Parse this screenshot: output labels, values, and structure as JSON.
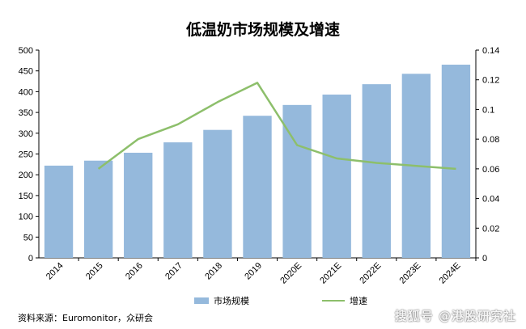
{
  "chart_data": {
    "type": "bar",
    "title": "低温奶市场规模及增速",
    "categories": [
      "2014",
      "2015",
      "2016",
      "2017",
      "2018",
      "2019",
      "2020E",
      "2021E",
      "2022E",
      "2023E",
      "2024E"
    ],
    "series": [
      {
        "name": "市场规模",
        "type": "bar",
        "axis": "left",
        "color": "#95b9dc",
        "values": [
          222,
          234,
          253,
          278,
          308,
          342,
          368,
          393,
          418,
          443,
          465
        ]
      },
      {
        "name": "增速",
        "type": "line",
        "axis": "right",
        "color": "#8dbf6b",
        "values": [
          null,
          0.06,
          0.08,
          0.09,
          0.105,
          0.118,
          0.076,
          0.067,
          0.064,
          0.062,
          0.06
        ]
      }
    ],
    "ylim_left": [
      0,
      500
    ],
    "yticks_left": [
      "0",
      "50",
      "100",
      "150",
      "200",
      "250",
      "300",
      "350",
      "400",
      "450",
      "500"
    ],
    "ylim_right": [
      0,
      0.14
    ],
    "yticks_right": [
      "0",
      "0.02",
      "0.04",
      "0.06",
      "0.08",
      "0.1",
      "0.12",
      "0.14"
    ],
    "legend_position": "bottom",
    "grid": false
  },
  "source": "资料来源：Euromonitor，众研会",
  "watermark": "搜狐号 @港股研究社"
}
